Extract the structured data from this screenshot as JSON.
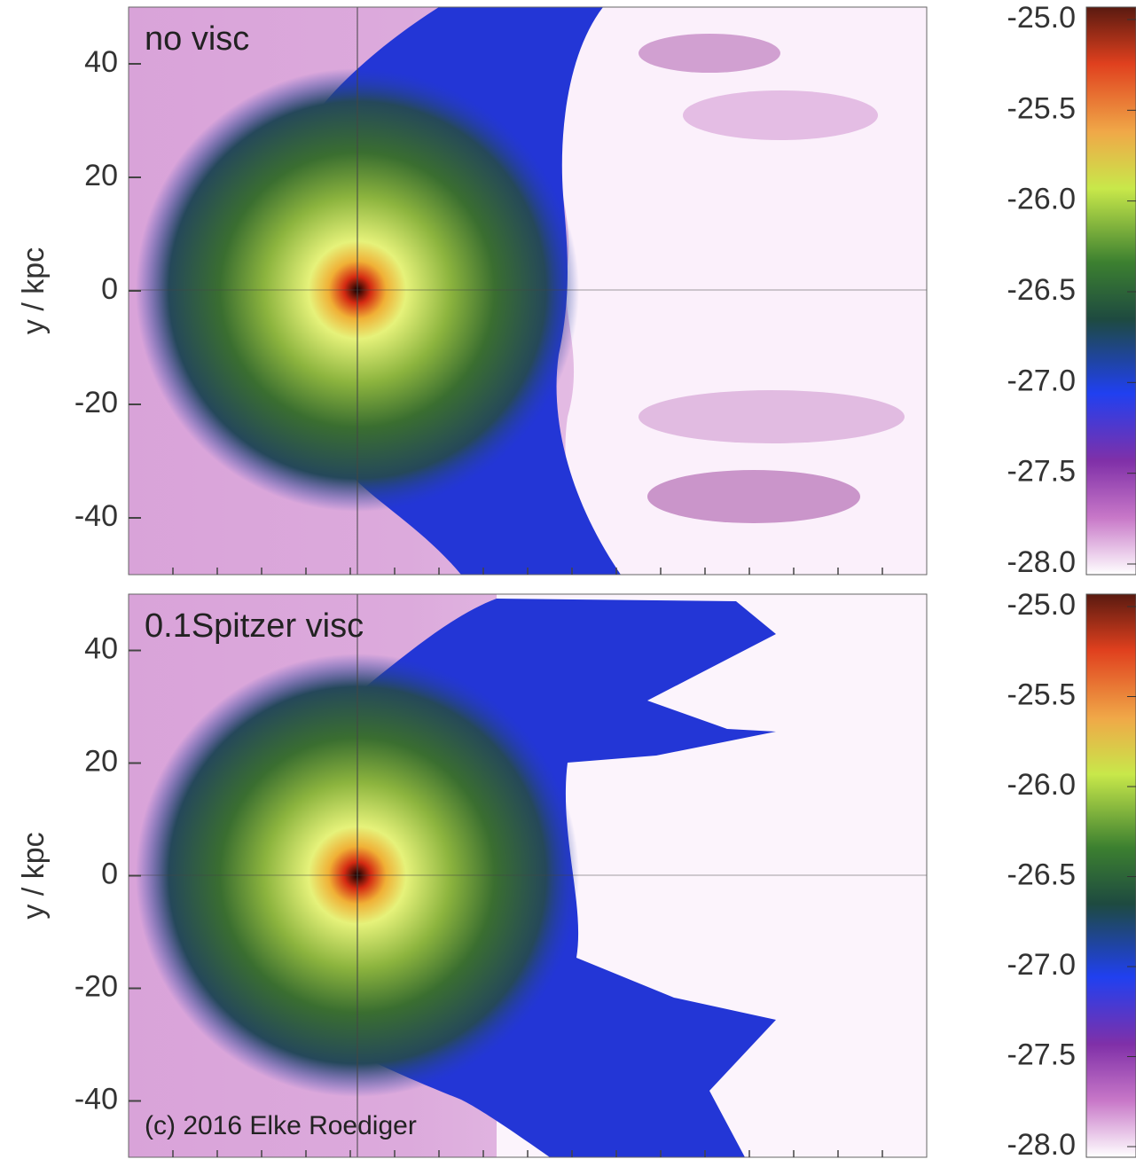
{
  "chart_data": [
    {
      "type": "heatmap",
      "title": "no visc",
      "ylabel": "y / kpc",
      "ylim": [
        -50,
        50
      ],
      "yticks": [
        40,
        20,
        0,
        -20,
        -40
      ],
      "colorbar": {
        "lim": [
          -28,
          -25
        ],
        "ticks": [
          {
            "value": -25,
            "label": "-25.0"
          },
          {
            "value": -25.5,
            "label": "-25.5"
          },
          {
            "value": -26,
            "label": "-26.0"
          },
          {
            "value": -26.5,
            "label": "-26.5"
          },
          {
            "value": -27,
            "label": "-27.0"
          },
          {
            "value": -27.5,
            "label": "-27.5"
          },
          {
            "value": -28,
            "label": "-28.0"
          }
        ]
      }
    },
    {
      "type": "heatmap",
      "title": "0.1Spitzer visc",
      "ylabel": "y / kpc",
      "annotation": "(c) 2016 Elke Roediger",
      "ylim": [
        -50,
        50
      ],
      "yticks": [
        40,
        20,
        0,
        -20,
        -40
      ],
      "colorbar": {
        "lim": [
          -28,
          -25
        ],
        "ticks": [
          {
            "value": -25,
            "label": "-25.0"
          },
          {
            "value": -25.5,
            "label": "-25.5"
          },
          {
            "value": -26,
            "label": "-26.0"
          },
          {
            "value": -26.5,
            "label": "-26.5"
          },
          {
            "value": -27,
            "label": "-27.0"
          },
          {
            "value": -27.5,
            "label": "-27.5"
          },
          {
            "value": -28,
            "label": "-28.0"
          }
        ]
      }
    }
  ]
}
